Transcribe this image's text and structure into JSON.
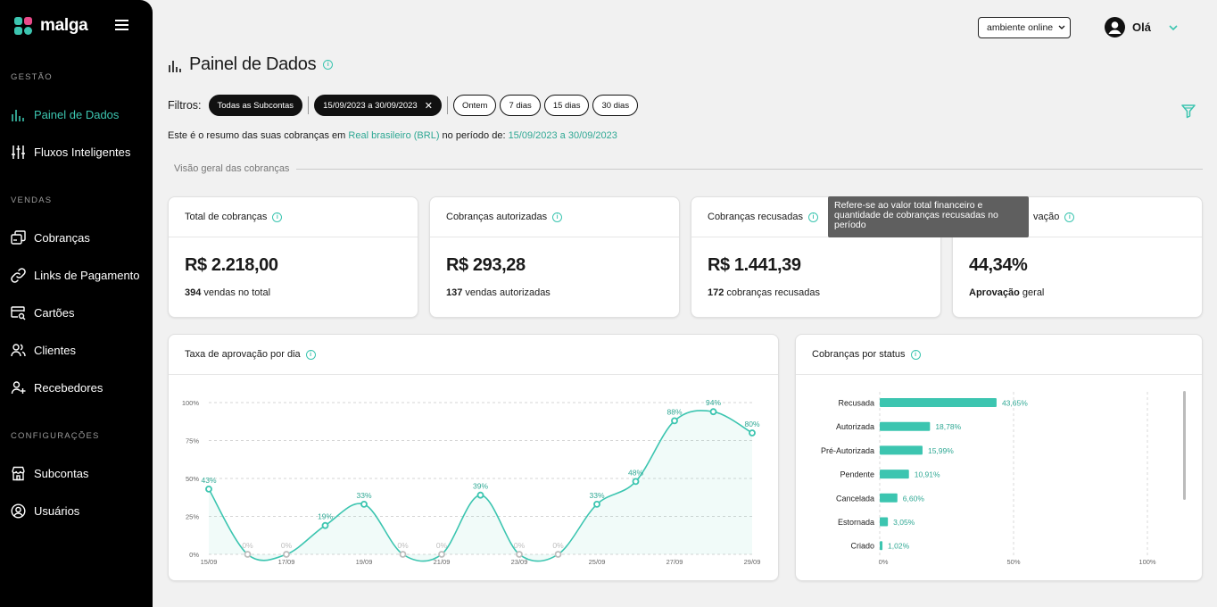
{
  "brand": {
    "name": "malga"
  },
  "sidebar": {
    "sections": [
      {
        "label": "GESTÃO",
        "items": [
          {
            "label": "Painel de Dados",
            "icon": "bar-chart-icon",
            "active": true
          },
          {
            "label": "Fluxos Inteligentes",
            "icon": "sliders-icon"
          }
        ]
      },
      {
        "label": "VENDAS",
        "items": [
          {
            "label": "Cobranças",
            "icon": "charges-icon"
          },
          {
            "label": "Links de Pagamento",
            "icon": "link-icon"
          },
          {
            "label": "Cartões",
            "icon": "card-search-icon"
          },
          {
            "label": "Clientes",
            "icon": "users-icon"
          },
          {
            "label": "Recebedores",
            "icon": "user-plus-icon"
          }
        ]
      },
      {
        "label": "CONFIGURAÇÕES",
        "items": [
          {
            "label": "Subcontas",
            "icon": "store-icon"
          },
          {
            "label": "Usuários",
            "icon": "user-circle-icon"
          }
        ]
      }
    ]
  },
  "header": {
    "environment": "ambiente online",
    "greeting": "Olá"
  },
  "page": {
    "title": "Painel de Dados"
  },
  "filters": {
    "label": "Filtros:",
    "subaccounts": "Todas as Subcontas",
    "date_range": "15/09/2023 a 30/09/2023",
    "quick": [
      "Ontem",
      "7 dias",
      "15 dias",
      "30 dias"
    ]
  },
  "summary": {
    "prefix": "Este é o resumo das suas cobranças em",
    "currency": "Real brasileiro (BRL)",
    "middle": "no período de:",
    "period": "15/09/2023 a 30/09/2023"
  },
  "overview": {
    "title": "Visão geral das cobranças"
  },
  "cards": [
    {
      "title": "Total de cobranças",
      "value": "R$ 2.218,00",
      "sub_bold": "394",
      "sub_text": " vendas no total"
    },
    {
      "title": "Cobranças autorizadas",
      "value": "R$ 293,28",
      "sub_bold": "137",
      "sub_text": " vendas autorizadas"
    },
    {
      "title": "Cobranças recusadas",
      "value": "R$ 1.441,39",
      "sub_bold": "172",
      "sub_text": " cobranças recusadas"
    },
    {
      "title": "vação",
      "value": "44,34%",
      "sub_bold": "Aprovação",
      "sub_text": " geral"
    }
  ],
  "tooltip": {
    "text": "Refere-se ao valor total financeiro e quantidade de cobranças recusadas no período"
  },
  "panels": {
    "approval_title": "Taxa de aprovação por dia",
    "status_title": "Cobranças por status"
  },
  "colors": {
    "accent": "#3cc5b0",
    "accent_text": "#2fa894",
    "muted": "#bdbdbd"
  },
  "chart_data": [
    {
      "type": "area",
      "title": "Taxa de aprovação por dia",
      "x": [
        "15/09",
        "16/09",
        "17/09",
        "18/09",
        "19/09",
        "20/09",
        "21/09",
        "22/09",
        "23/09",
        "24/09",
        "25/09",
        "26/09",
        "27/09",
        "28/09",
        "29/09"
      ],
      "values": [
        43,
        0,
        0,
        19,
        33,
        0,
        0,
        39,
        0,
        0,
        33,
        48,
        88,
        94,
        80
      ],
      "labels": [
        "43%",
        "0%",
        "0%",
        "19%",
        "33%",
        "0%",
        "0%",
        "39%",
        "0%",
        "0%",
        "33%",
        "48%",
        "88%",
        "94%",
        "80%"
      ],
      "x_ticks": [
        "15/09",
        "17/09",
        "19/09",
        "21/09",
        "23/09",
        "25/09",
        "27/09",
        "29/09"
      ],
      "y_ticks": [
        "0%",
        "25%",
        "50%",
        "75%",
        "100%"
      ],
      "ylim": [
        0,
        100
      ],
      "grid": true
    },
    {
      "type": "bar",
      "orientation": "horizontal",
      "title": "Cobranças por status",
      "categories": [
        "Recusada",
        "Autorizada",
        "Pré-Autorizada",
        "Pendente",
        "Cancelada",
        "Estornada",
        "Criado"
      ],
      "values": [
        43.65,
        18.78,
        15.99,
        10.91,
        6.6,
        3.05,
        1.02
      ],
      "labels": [
        "43,65%",
        "18,78%",
        "15,99%",
        "10,91%",
        "6,60%",
        "3,05%",
        "1,02%"
      ],
      "x_ticks": [
        "0%",
        "50%",
        "100%"
      ],
      "xlim": [
        0,
        100
      ],
      "grid": true
    }
  ]
}
